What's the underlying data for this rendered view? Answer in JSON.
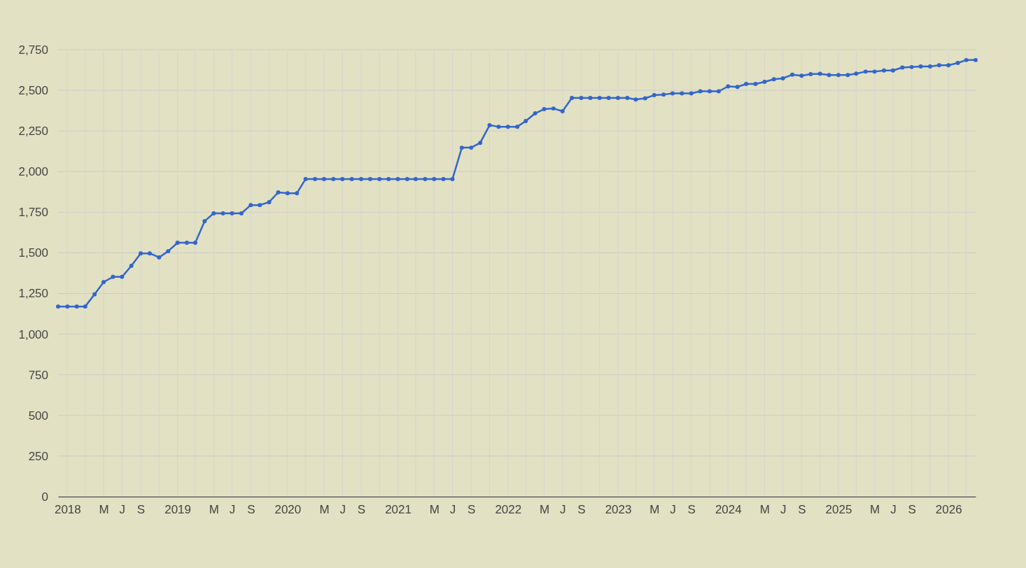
{
  "chart_data": {
    "type": "line",
    "marker": "circle",
    "grid": true,
    "xlim": [
      "2017-12",
      "2026-04"
    ],
    "ylim": [
      0,
      2750
    ],
    "yticks": [
      0,
      {
        "value": 250,
        "label": "250"
      },
      {
        "value": 500,
        "label": "500"
      },
      {
        "value": 750,
        "label": "750"
      },
      {
        "value": 1000,
        "label": "1,000"
      },
      {
        "value": 1250,
        "label": "1,250"
      },
      {
        "value": 1500,
        "label": "1,500"
      },
      {
        "value": 1750,
        "label": "1,750"
      },
      {
        "value": 2000,
        "label": "2,000"
      },
      {
        "value": 2250,
        "label": "2,250"
      },
      {
        "value": 2500,
        "label": "2,500"
      },
      {
        "value": 2750,
        "label": "2,750"
      }
    ],
    "xticks": [
      {
        "value": "2018-01",
        "label": "2018"
      },
      {
        "value": "2018-03",
        "label": null
      },
      {
        "value": "2018-05",
        "label": "M"
      },
      {
        "value": "2018-07",
        "label": "J"
      },
      {
        "value": "2018-09",
        "label": "S"
      },
      {
        "value": "2018-11",
        "label": null
      },
      {
        "value": "2019-01",
        "label": "2019"
      },
      {
        "value": "2019-03",
        "label": null
      },
      {
        "value": "2019-05",
        "label": "M"
      },
      {
        "value": "2019-07",
        "label": "J"
      },
      {
        "value": "2019-09",
        "label": "S"
      },
      {
        "value": "2019-11",
        "label": null
      },
      {
        "value": "2020-01",
        "label": "2020"
      },
      {
        "value": "2020-03",
        "label": null
      },
      {
        "value": "2020-05",
        "label": "M"
      },
      {
        "value": "2020-07",
        "label": "J"
      },
      {
        "value": "2020-09",
        "label": "S"
      },
      {
        "value": "2020-11",
        "label": null
      },
      {
        "value": "2021-01",
        "label": "2021"
      },
      {
        "value": "2021-03",
        "label": null
      },
      {
        "value": "2021-05",
        "label": "M"
      },
      {
        "value": "2021-07",
        "label": "J"
      },
      {
        "value": "2021-09",
        "label": "S"
      },
      {
        "value": "2021-11",
        "label": null
      },
      {
        "value": "2022-01",
        "label": "2022"
      },
      {
        "value": "2022-03",
        "label": null
      },
      {
        "value": "2022-05",
        "label": "M"
      },
      {
        "value": "2022-07",
        "label": "J"
      },
      {
        "value": "2022-09",
        "label": "S"
      },
      {
        "value": "2022-11",
        "label": null
      },
      {
        "value": "2023-01",
        "label": "2023"
      },
      {
        "value": "2023-03",
        "label": null
      },
      {
        "value": "2023-05",
        "label": "M"
      },
      {
        "value": "2023-07",
        "label": "J"
      },
      {
        "value": "2023-09",
        "label": "S"
      },
      {
        "value": "2023-11",
        "label": null
      },
      {
        "value": "2024-01",
        "label": "2024"
      },
      {
        "value": "2024-03",
        "label": null
      },
      {
        "value": "2024-05",
        "label": "M"
      },
      {
        "value": "2024-07",
        "label": "J"
      },
      {
        "value": "2024-09",
        "label": "S"
      },
      {
        "value": "2024-11",
        "label": null
      },
      {
        "value": "2025-01",
        "label": "2025"
      },
      {
        "value": "2025-03",
        "label": null
      },
      {
        "value": "2025-05",
        "label": "M"
      },
      {
        "value": "2025-07",
        "label": "J"
      },
      {
        "value": "2025-09",
        "label": "S"
      },
      {
        "value": "2025-11",
        "label": null
      },
      {
        "value": "2026-01",
        "label": "2026"
      },
      {
        "value": "2026-03",
        "label": null
      }
    ],
    "x": [
      "2017-12",
      "2018-01",
      "2018-02",
      "2018-03",
      "2018-04",
      "2018-05",
      "2018-06",
      "2018-07",
      "2018-08",
      "2018-09",
      "2018-10",
      "2018-11",
      "2018-12",
      "2019-01",
      "2019-02",
      "2019-03",
      "2019-04",
      "2019-05",
      "2019-06",
      "2019-07",
      "2019-08",
      "2019-09",
      "2019-10",
      "2019-11",
      "2019-12",
      "2020-01",
      "2020-02",
      "2020-03",
      "2020-04",
      "2020-05",
      "2020-06",
      "2020-07",
      "2020-08",
      "2020-09",
      "2020-10",
      "2020-11",
      "2020-12",
      "2021-01",
      "2021-02",
      "2021-03",
      "2021-04",
      "2021-05",
      "2021-06",
      "2021-07",
      "2021-08",
      "2021-09",
      "2021-10",
      "2021-11",
      "2021-12",
      "2022-01",
      "2022-02",
      "2022-03",
      "2022-04",
      "2022-05",
      "2022-06",
      "2022-07",
      "2022-08",
      "2022-09",
      "2022-10",
      "2022-11",
      "2022-12",
      "2023-01",
      "2023-02",
      "2023-03",
      "2023-04",
      "2023-05",
      "2023-06",
      "2023-07",
      "2023-08",
      "2023-09",
      "2023-10",
      "2023-11",
      "2023-12",
      "2024-01",
      "2024-02",
      "2024-03",
      "2024-04",
      "2024-05",
      "2024-06",
      "2024-07",
      "2024-08",
      "2024-09",
      "2024-10",
      "2024-11",
      "2024-12",
      "2025-01",
      "2025-02",
      "2025-03",
      "2025-04",
      "2025-05",
      "2025-06",
      "2025-07",
      "2025-08",
      "2025-09",
      "2025-10",
      "2025-11",
      "2025-12",
      "2026-01",
      "2026-02",
      "2026-03",
      "2026-04"
    ],
    "series": [
      {
        "color": "#3366cc",
        "values": [
          1170,
          1170,
          1170,
          1170,
          1245,
          1320,
          1352,
          1352,
          1420,
          1497,
          1497,
          1472,
          1510,
          1562,
          1562,
          1562,
          1695,
          1743,
          1743,
          1743,
          1743,
          1794,
          1794,
          1812,
          1872,
          1867,
          1867,
          1954,
          1954,
          1954,
          1954,
          1954,
          1954,
          1954,
          1954,
          1954,
          1954,
          1954,
          1954,
          1954,
          1954,
          1954,
          1954,
          1954,
          2147,
          2147,
          2177,
          2285,
          2276,
          2276,
          2276,
          2311,
          2358,
          2384,
          2388,
          2371,
          2453,
          2453,
          2453,
          2453,
          2453,
          2453,
          2453,
          2443,
          2451,
          2470,
          2474,
          2481,
          2481,
          2481,
          2494,
          2494,
          2494,
          2524,
          2521,
          2539,
          2539,
          2552,
          2568,
          2574,
          2596,
          2590,
          2599,
          2602,
          2594,
          2594,
          2594,
          2603,
          2615,
          2615,
          2622,
          2622,
          2640,
          2643,
          2647,
          2647,
          2654,
          2654,
          2668,
          2686,
          2686
        ]
      }
    ]
  }
}
